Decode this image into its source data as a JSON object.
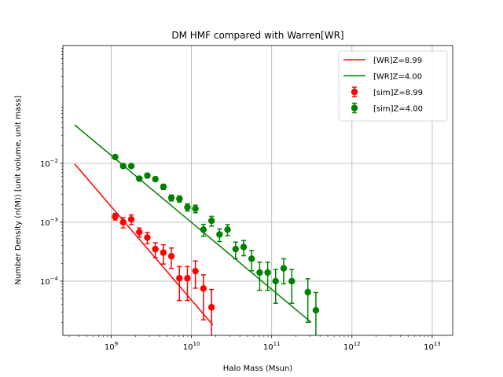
{
  "chart_data": {
    "type": "line",
    "title": "DM HMF compared with Warren[WR]",
    "xlabel": "Halo Mass (Msun)",
    "ylabel": "Number Density (n(M)) [unit volume, unit mass]",
    "xscale": "log",
    "yscale": "log",
    "xlim": [
      250000000.0,
      18000000000000.0
    ],
    "ylim": [
      1.2e-05,
      1.0
    ],
    "x_ticks": [
      {
        "value": 1000000000.0,
        "base": "10",
        "exp": "9"
      },
      {
        "value": 10000000000.0,
        "base": "10",
        "exp": "10"
      },
      {
        "value": 100000000000.0,
        "base": "10",
        "exp": "11"
      },
      {
        "value": 1000000000000.0,
        "base": "10",
        "exp": "12"
      },
      {
        "value": 10000000000000.0,
        "base": "10",
        "exp": "13"
      }
    ],
    "y_ticks": [
      {
        "value": 0.0001,
        "base": "10",
        "exp": "−4"
      },
      {
        "value": 0.001,
        "base": "10",
        "exp": "−3"
      },
      {
        "value": 0.01,
        "base": "10",
        "exp": "−2"
      }
    ],
    "grid": true,
    "legend_position": "top-right",
    "series": [
      {
        "name": "[WR]Z=8.99",
        "kind": "line",
        "color": "#ff0000",
        "x": [
          350000000.0,
          18500000000.0
        ],
        "y": [
          0.0098,
          1.8e-05
        ]
      },
      {
        "name": "[WR]Z=4.00",
        "kind": "line",
        "color": "#008000",
        "x": [
          350000000.0,
          310000000000.0
        ],
        "y": [
          0.045,
          2e-05
        ]
      },
      {
        "name": "[sim]Z=8.99",
        "kind": "errorbar",
        "color": "#ff0000",
        "x": [
          1120000000.0,
          1410000000.0,
          1780000000.0,
          2240000000.0,
          2820000000.0,
          3550000000.0,
          4470000000.0,
          5620000000.0,
          7080000000.0,
          8910000000.0,
          11200000000.0,
          14100000000.0,
          17800000000.0
        ],
        "y": [
          0.00125,
          0.001,
          0.00112,
          0.00068,
          0.00055,
          0.00035,
          0.000305,
          0.000265,
          0.000112,
          0.000112,
          0.000148,
          7.5e-05,
          3.6e-05
        ],
        "err": [
          0.00016,
          0.0002,
          0.00021,
          0.00012,
          0.00012,
          0.0001,
          0.00011,
          0.0001,
          6.5e-05,
          6.5e-05,
          7.2e-05,
          5.3e-05,
          3.6e-05
        ]
      },
      {
        "name": "[sim]Z=4.00",
        "kind": "errorbar",
        "color": "#008000",
        "x": [
          1120000000.0,
          1410000000.0,
          1780000000.0,
          2240000000.0,
          2820000000.0,
          3550000000.0,
          4470000000.0,
          5620000000.0,
          7080000000.0,
          8910000000.0,
          11200000000.0,
          14100000000.0,
          17800000000.0,
          22400000000.0,
          28200000000.0,
          35500000000.0,
          44700000000.0,
          56200000000.0,
          70800000000.0,
          89100000000.0,
          112000000000.0,
          141000000000.0,
          178000000000.0,
          282000000000.0,
          355000000000.0
        ],
        "y": [
          0.0128,
          0.009,
          0.009,
          0.0055,
          0.0062,
          0.0054,
          0.004,
          0.0026,
          0.0025,
          0.0018,
          0.0017,
          0.00075,
          0.00106,
          0.00062,
          0.00075,
          0.00035,
          0.00038,
          0.00024,
          0.00014,
          0.00014,
          0.0001,
          0.000165,
          0.0001,
          6.5e-05,
          3.2e-05
        ],
        "err": [
          0.0007,
          0.00055,
          0.00055,
          0.00045,
          0.0005,
          0.00045,
          0.0004,
          0.0003,
          0.0003,
          0.00025,
          0.00025,
          0.00017,
          0.0002,
          0.00015,
          0.00016,
          0.00011,
          0.00011,
          9e-05,
          7e-05,
          7e-05,
          5.8e-05,
          7.5e-05,
          5.8e-05,
          4.5e-05,
          3.2e-05
        ]
      }
    ]
  }
}
